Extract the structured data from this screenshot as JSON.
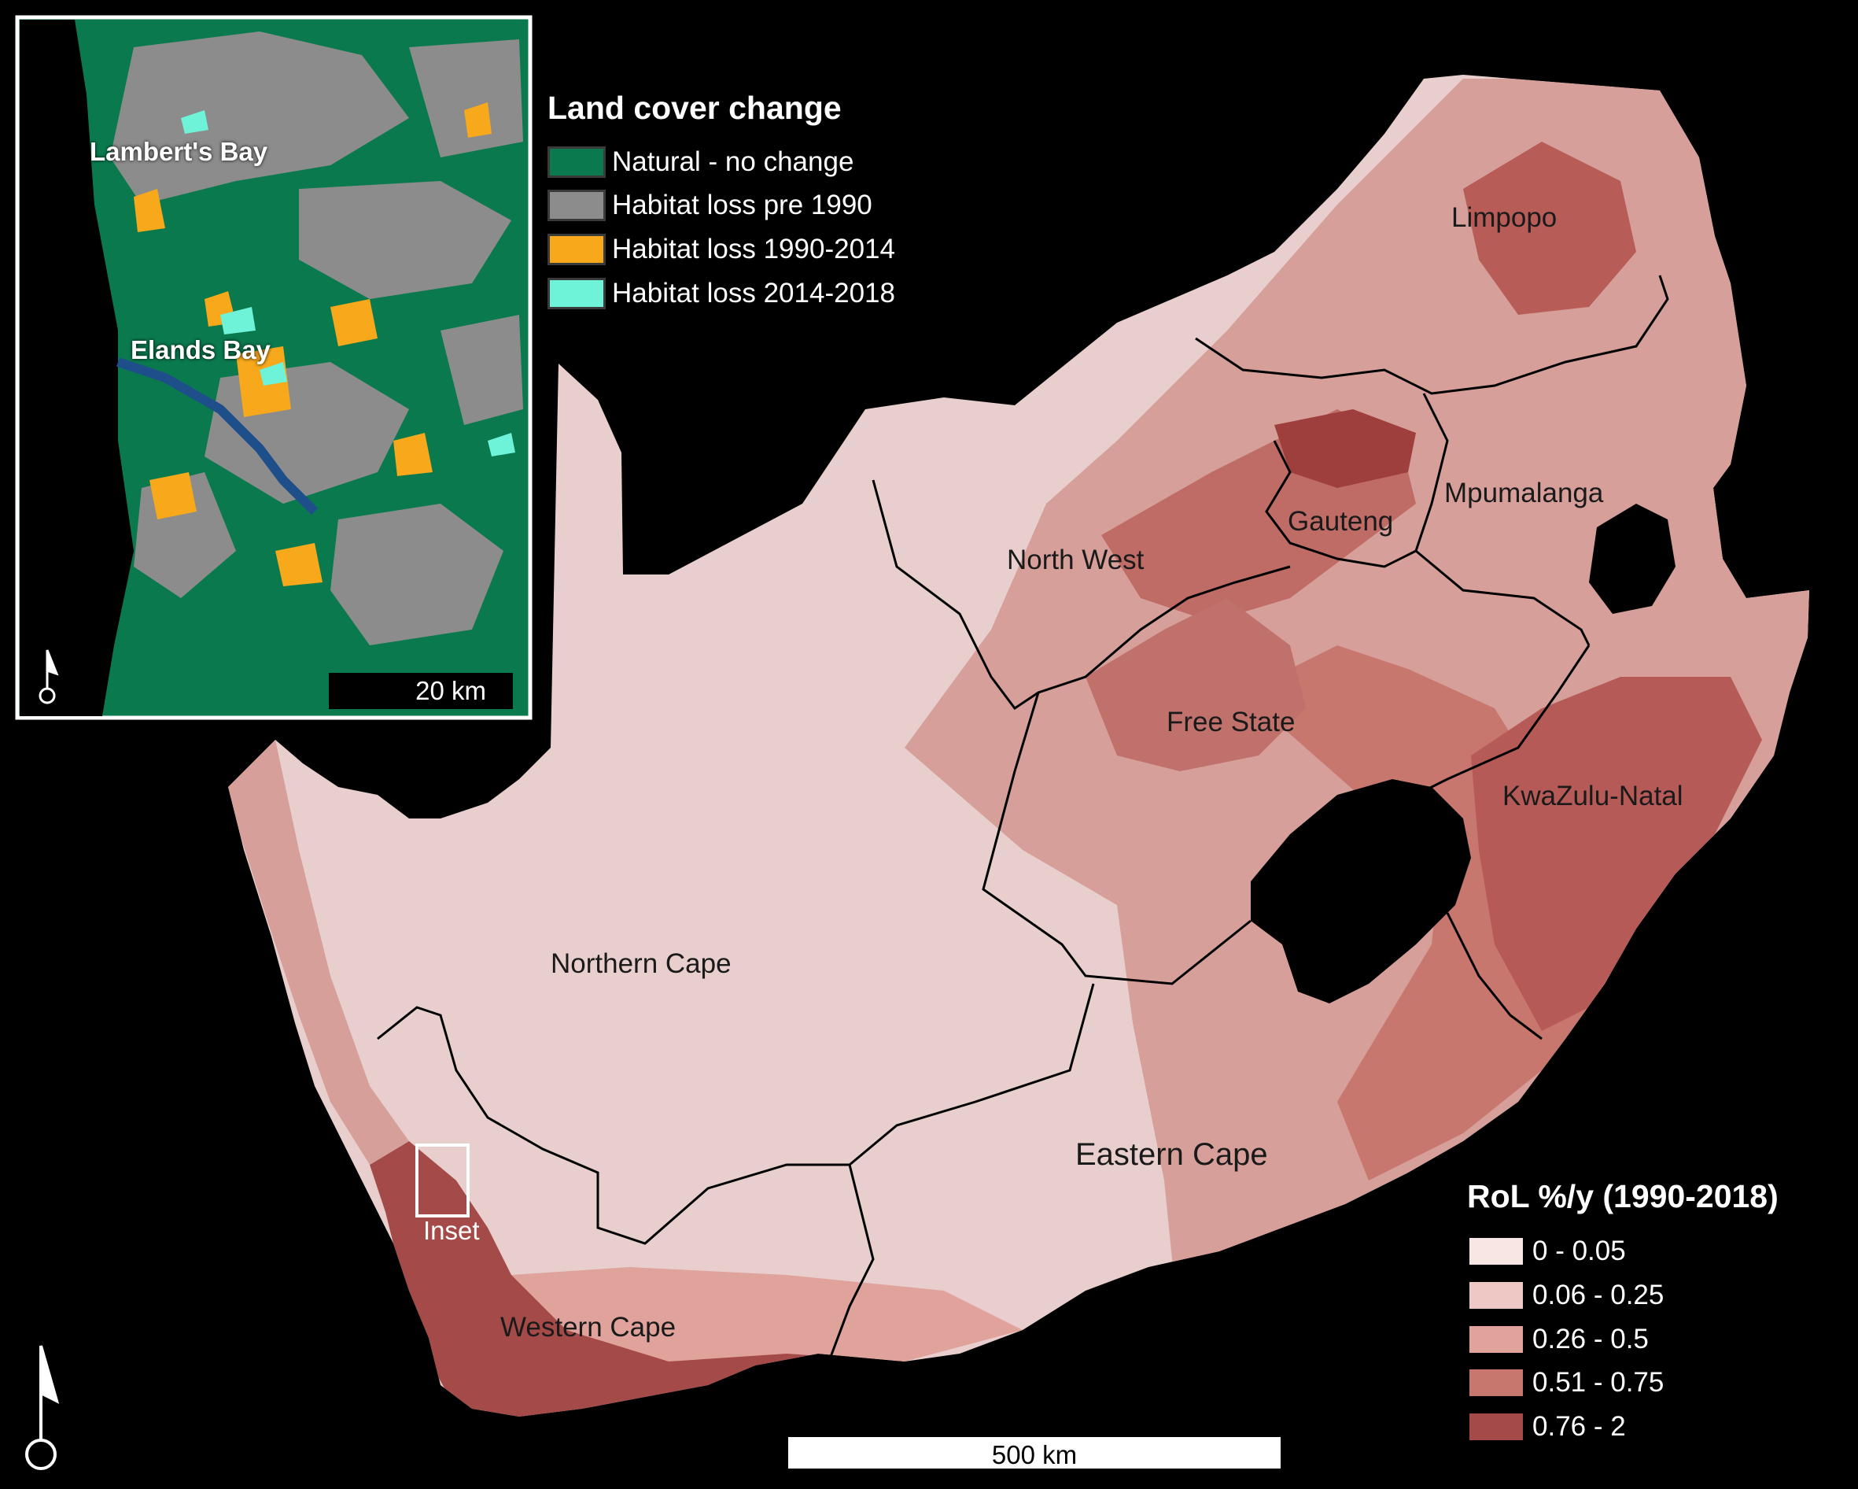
{
  "colors": {
    "background": "#000000",
    "natural": "#0a7a4e",
    "pre1990": "#8c8c8c",
    "loss_1990_2014": "#f7a81b",
    "loss_2014_2018": "#6ef2d8",
    "rol_0": "#f8e6e4",
    "rol_1": "#eec8c4",
    "rol_2": "#dfa39c",
    "rol_3": "#c8776f",
    "rol_4": "#a44a48"
  },
  "provinces": [
    {
      "id": "limpopo",
      "label": "Limpopo"
    },
    {
      "id": "mpumalanga",
      "label": "Mpumalanga"
    },
    {
      "id": "gauteng",
      "label": "Gauteng"
    },
    {
      "id": "north-west",
      "label": "North West"
    },
    {
      "id": "free-state",
      "label": "Free State"
    },
    {
      "id": "kwazulu-natal",
      "label": "KwaZulu-Natal"
    },
    {
      "id": "northern-cape",
      "label": "Northern Cape"
    },
    {
      "id": "eastern-cape",
      "label": "Eastern Cape"
    },
    {
      "id": "western-cape",
      "label": "Western Cape"
    }
  ],
  "inset": {
    "marker_label": "Inset",
    "towns": [
      "Lambert's Bay",
      "Elands Bay"
    ],
    "scale_label": "20 km"
  },
  "land_cover_legend": {
    "title": "Land cover change",
    "items": [
      {
        "label": "Natural - no change",
        "color_key": "natural"
      },
      {
        "label": "Habitat loss  pre 1990",
        "color_key": "pre1990"
      },
      {
        "label": "Habitat loss 1990-2014",
        "color_key": "loss_1990_2014"
      },
      {
        "label": "Habitat loss 2014-2018",
        "color_key": "loss_2014_2018"
      }
    ]
  },
  "rol_legend": {
    "title": "RoL %/y (1990-2018)",
    "items": [
      {
        "label": "0 - 0.05",
        "color_key": "rol_0"
      },
      {
        "label": "0.06 - 0.25",
        "color_key": "rol_1"
      },
      {
        "label": "0.26 - 0.5",
        "color_key": "rol_2"
      },
      {
        "label": "0.51 - 0.75",
        "color_key": "rol_3"
      },
      {
        "label": "0.76 - 2",
        "color_key": "rol_4"
      }
    ]
  },
  "scale_bar": {
    "label": "500 km"
  },
  "north_arrow_icon": "north-arrow-icon"
}
